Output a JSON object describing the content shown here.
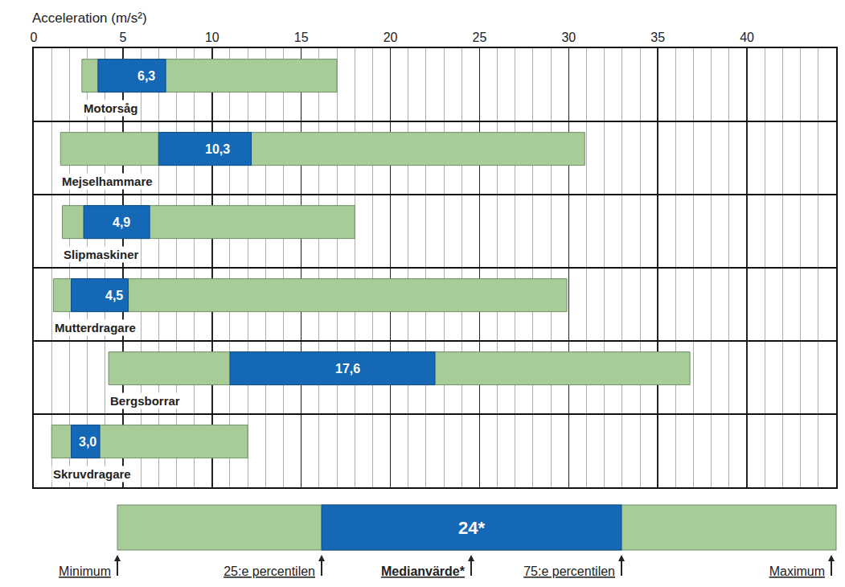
{
  "chart_data": {
    "type": "bar",
    "orientation": "horizontal",
    "x_label": "Acceleration (m/s²)",
    "categories": [
      "Motorsåg",
      "Mejselhammare",
      "Slipmaskiner",
      "Mutterdragare",
      "Bergsborrar",
      "Skruvdragare"
    ],
    "min": [
      2.7,
      1.5,
      1.6,
      1.1,
      4.2,
      1.0
    ],
    "q1": [
      3.6,
      7.0,
      2.8,
      2.1,
      11.0,
      2.1
    ],
    "values": [
      6.3,
      10.3,
      4.9,
      4.5,
      17.6,
      3.0
    ],
    "value_labels": [
      "6,3",
      "10,3",
      "4,9",
      "4,5",
      "17,6",
      "3,0"
    ],
    "q3": [
      7.4,
      12.2,
      6.5,
      5.3,
      22.5,
      3.7
    ],
    "max": [
      17.0,
      30.9,
      18.0,
      29.9,
      36.8,
      12.0
    ],
    "colors": [
      "#a7cc98",
      "#1468b6"
    ],
    "data_labels": true,
    "xlim": [
      0,
      45
    ],
    "xticks": [
      0,
      5,
      10,
      15,
      20,
      25,
      30,
      35,
      40
    ],
    "grid": true,
    "tick_labels": "x",
    "key": {
      "labels": [
        "Minimum",
        "25:e percentilen",
        "Medianvärde*",
        "75:e percentilen",
        "Maximum"
      ],
      "value_label": "24*"
    }
  }
}
